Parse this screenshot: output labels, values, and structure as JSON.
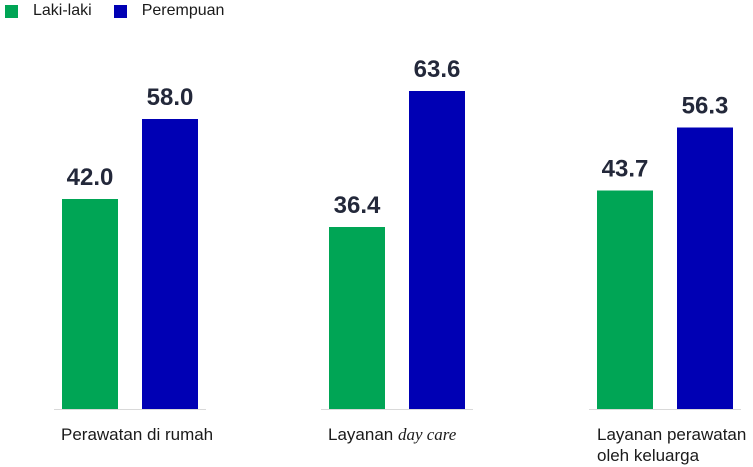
{
  "chart_data": {
    "type": "bar",
    "categories": [
      {
        "text": "Perawatan di rumah",
        "parts": [
          {
            "t": "Perawatan di rumah",
            "italic": false
          }
        ]
      },
      {
        "text": "Layanan day care",
        "parts": [
          {
            "t": "Layanan ",
            "italic": false
          },
          {
            "t": "day care",
            "italic": true
          }
        ]
      },
      {
        "text": "Layanan perawatan oleh keluarga",
        "parts": [
          {
            "t": "Layanan perawatan",
            "italic": false
          },
          {
            "t": "oleh keluarga",
            "italic": false,
            "newline": true
          }
        ]
      }
    ],
    "series": [
      {
        "name": "Laki-laki",
        "color": "#00A555",
        "values": [
          42.0,
          36.4,
          43.7
        ],
        "labels": [
          "42.0",
          "36.4",
          "43.7"
        ]
      },
      {
        "name": "Perempuan",
        "color": "#0000B4",
        "values": [
          58.0,
          63.6,
          56.3
        ],
        "labels": [
          "58.0",
          "63.6",
          "56.3"
        ]
      }
    ],
    "ylim": [
      0,
      70
    ],
    "grid": false,
    "legend_position": "top-left"
  }
}
